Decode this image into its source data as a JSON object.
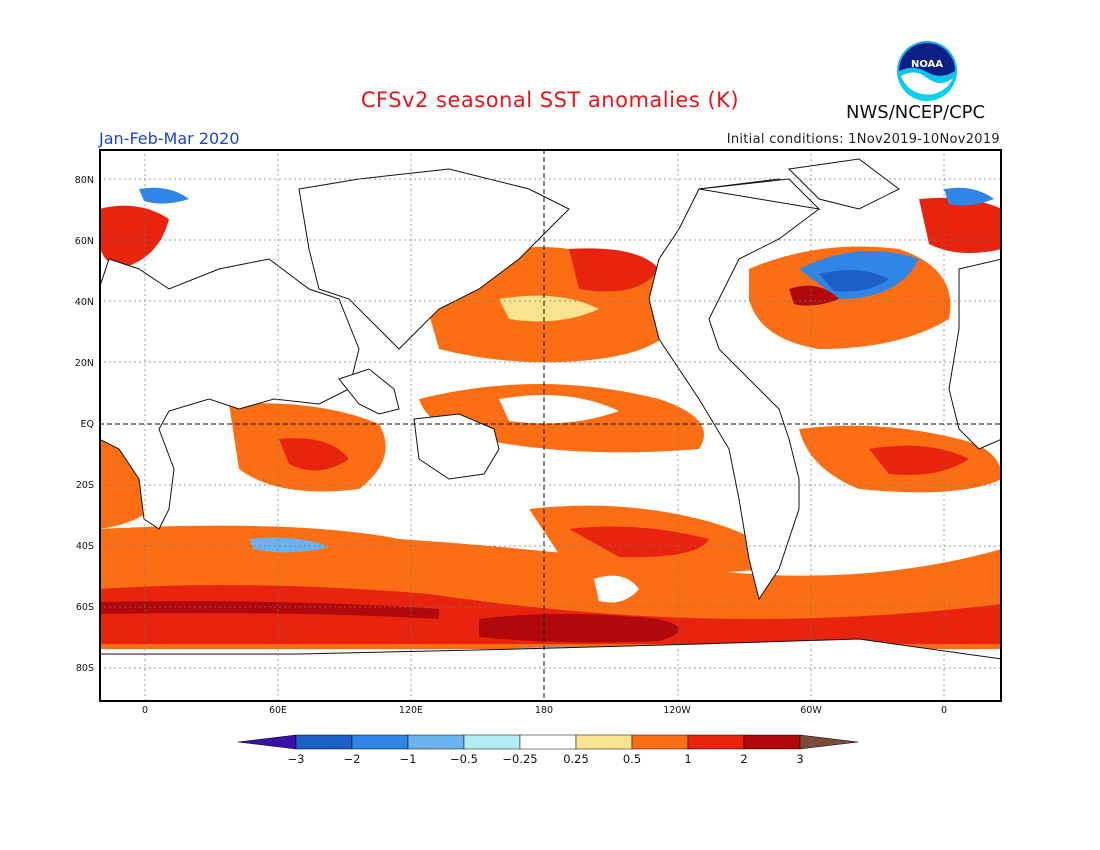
{
  "title": "CFSv2 seasonal SST anomalies (K)",
  "period": "Jan-Feb-Mar 2020",
  "initial_conditions": "Initial conditions: 1Nov2019-10Nov2019",
  "agency": "NWS/NCEP/CPC",
  "logo_text": "NOAA",
  "lat_labels": [
    "80N",
    "60N",
    "40N",
    "20N",
    "EQ",
    "20S",
    "40S",
    "60S",
    "80S"
  ],
  "lon_labels": [
    "0",
    "60E",
    "120E",
    "180",
    "120W",
    "60W",
    "0"
  ],
  "colorbar": {
    "labels": [
      "-3",
      "-2",
      "-1",
      "-0.5",
      "-0.25",
      "0.25",
      "0.5",
      "1",
      "2",
      "3"
    ],
    "colors": [
      "#3b10a8",
      "#1c5fc9",
      "#2f86e6",
      "#6ab2f0",
      "#b6ecf5",
      "#ffffff",
      "#fbe390",
      "#fb6e14",
      "#e8240f",
      "#b0080d",
      "#7a4b3c"
    ]
  }
}
